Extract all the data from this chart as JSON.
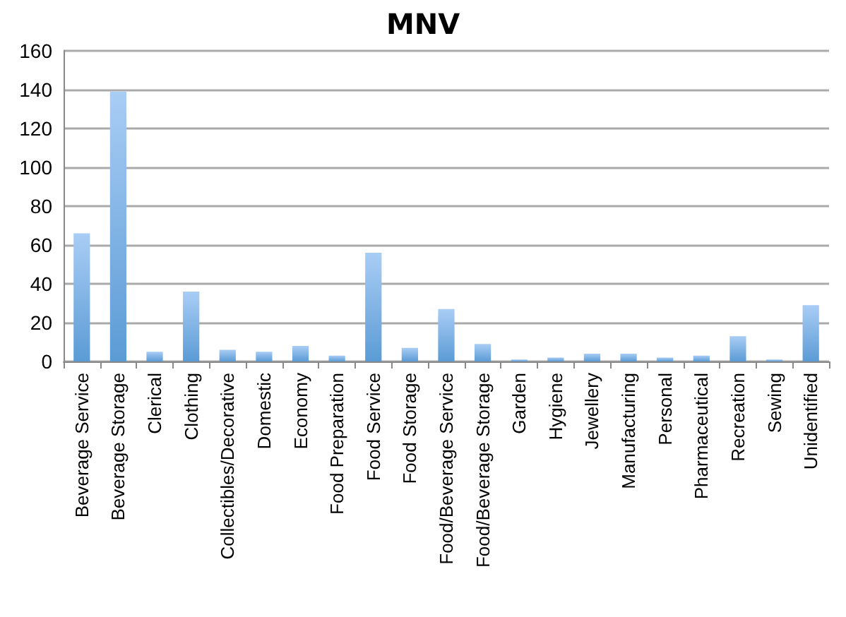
{
  "chart_data": {
    "type": "bar",
    "title": "MNV",
    "categories": [
      "Beverage Service",
      "Beverage Storage",
      "Clerical",
      "Clothing",
      "Collectibles/Decorative",
      "Domestic",
      "Economy",
      "Food Preparation",
      "Food Service",
      "Food Storage",
      "Food/Beverage Service",
      "Food/Beverage Storage",
      "Garden",
      "Hygiene",
      "Jewellery",
      "Manufacturing",
      "Personal",
      "Pharmaceutical",
      "Recreation",
      "Sewing",
      "Unidentified"
    ],
    "values": [
      66,
      139,
      5,
      36,
      6,
      5,
      8,
      3,
      56,
      7,
      27,
      9,
      1,
      2,
      4,
      4,
      2,
      3,
      13,
      1,
      29
    ],
    "color": "#5b9bd5",
    "ylim": [
      0,
      160
    ],
    "yticks": [
      0,
      20,
      40,
      60,
      80,
      100,
      120,
      140,
      160
    ],
    "grid": "y"
  }
}
